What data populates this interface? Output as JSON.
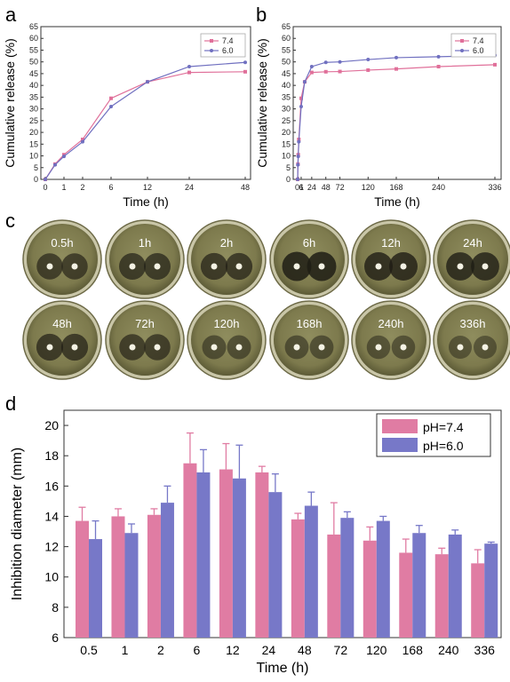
{
  "panel_labels": {
    "a": "a",
    "b": "b",
    "c": "c",
    "d": "d"
  },
  "chart_data": [
    {
      "type": "line",
      "panel": "a",
      "xlabel": "Time (h)",
      "ylabel": "Cumulative release (%)",
      "x_ticks": [
        "0",
        "1",
        "2",
        "6",
        "12",
        "24",
        "48"
      ],
      "ylim": [
        0,
        65
      ],
      "y_ticks": [
        0,
        5,
        10,
        15,
        20,
        25,
        30,
        35,
        40,
        45,
        50,
        55,
        60,
        65
      ],
      "legend_position": "top-right",
      "series": [
        {
          "name": "7.4",
          "color": "#e0709a",
          "x": [
            "0",
            "0.5",
            "1",
            "2",
            "6",
            "12",
            "24",
            "48"
          ],
          "values": [
            0,
            6.5,
            10.5,
            17,
            34.5,
            41.5,
            45.5,
            45.8
          ]
        },
        {
          "name": "6.0",
          "color": "#7070c0",
          "x": [
            "0",
            "0.5",
            "1",
            "2",
            "6",
            "12",
            "24",
            "48"
          ],
          "values": [
            0,
            6.2,
            9.8,
            16,
            31,
            41.5,
            48,
            49.8
          ]
        }
      ]
    },
    {
      "type": "line",
      "panel": "b",
      "xlabel": "Time (h)",
      "ylabel": "Cumulative release (%)",
      "x_ticks": [
        "0",
        "1",
        "6",
        "24",
        "48",
        "72",
        "120",
        "168",
        "240",
        "336"
      ],
      "x_tick_groups": {
        "first": "01",
        "rest": [
          "6",
          "24",
          "48",
          "72",
          "120",
          "168",
          "240",
          "336"
        ]
      },
      "ylim": [
        0,
        65
      ],
      "y_ticks": [
        0,
        5,
        10,
        15,
        20,
        25,
        30,
        35,
        40,
        45,
        50,
        55,
        60,
        65
      ],
      "legend_position": "top-right",
      "series": [
        {
          "name": "7.4",
          "color": "#e0709a",
          "x": [
            0,
            0.5,
            1,
            2,
            6,
            12,
            24,
            48,
            72,
            120,
            168,
            240,
            336
          ],
          "values": [
            0,
            6.5,
            10.5,
            17,
            34.5,
            41.5,
            45.5,
            45.8,
            45.9,
            46.5,
            47,
            48,
            48.8
          ]
        },
        {
          "name": "6.0",
          "color": "#7070c0",
          "x": [
            0,
            0.5,
            1,
            2,
            6,
            12,
            24,
            48,
            72,
            120,
            168,
            240,
            336
          ],
          "values": [
            0,
            6.2,
            9.8,
            16,
            31,
            41.5,
            48,
            49.8,
            50,
            51,
            51.8,
            52.2,
            52.8
          ]
        }
      ]
    },
    {
      "type": "bar",
      "panel": "d",
      "xlabel": "Time (h)",
      "ylabel": "Inhibition diameter (mm)",
      "categories": [
        "0.5",
        "1",
        "2",
        "6",
        "12",
        "24",
        "48",
        "72",
        "120",
        "168",
        "240",
        "336"
      ],
      "ylim": [
        6,
        21
      ],
      "y_ticks": [
        6,
        8,
        10,
        12,
        14,
        16,
        18,
        20
      ],
      "legend_position": "top-right",
      "series": [
        {
          "name": "pH=7.4",
          "color": "#e07ca3",
          "values": [
            13.7,
            14.0,
            14.1,
            17.5,
            17.1,
            16.9,
            13.8,
            12.8,
            12.4,
            11.6,
            11.5,
            10.9
          ],
          "errors": [
            0.9,
            0.5,
            0.4,
            2.0,
            1.7,
            0.4,
            0.4,
            2.1,
            0.9,
            0.9,
            0.4,
            0.9
          ]
        },
        {
          "name": "pH=6.0",
          "color": "#7778c8",
          "values": [
            12.5,
            12.9,
            14.9,
            16.9,
            16.5,
            15.6,
            14.7,
            13.9,
            13.7,
            12.9,
            12.8,
            12.2
          ],
          "errors": [
            1.2,
            0.6,
            1.1,
            1.5,
            2.2,
            1.2,
            0.9,
            0.4,
            0.3,
            0.5,
            0.3,
            0.1
          ]
        }
      ]
    }
  ],
  "dishes": {
    "labels": [
      "0.5h",
      "1h",
      "2h",
      "6h",
      "12h",
      "24h",
      "48h",
      "72h",
      "120h",
      "168h",
      "240h",
      "336h"
    ],
    "inhibition_zone_darkness": [
      0.55,
      0.6,
      0.62,
      0.9,
      0.8,
      0.78,
      0.62,
      0.55,
      0.3,
      0.28,
      0.25,
      0.2
    ]
  }
}
